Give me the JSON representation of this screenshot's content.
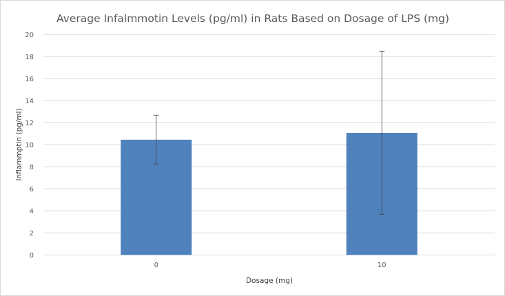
{
  "chart_data": {
    "type": "bar",
    "title": "Average Infalmmotin Levels (pg/ml) in Rats Based on Dosage of LPS (mg)",
    "xlabel": "Dosage (mg)",
    "ylabel": "Inflammptin (pg/ml)",
    "categories": [
      "0",
      "10"
    ],
    "values": [
      10.46,
      11.08
    ],
    "error_upper": [
      12.69,
      18.5
    ],
    "error_lower": [
      8.25,
      3.69
    ],
    "ylim": [
      0,
      20
    ],
    "yticks": [
      "0",
      "2",
      "4",
      "6",
      "8",
      "10",
      "12",
      "14",
      "16",
      "18",
      "20"
    ],
    "grid": true,
    "bar_color": "#4f81bd",
    "gridline_color": "#d9d9d9",
    "errorbar_color": "#404040"
  }
}
